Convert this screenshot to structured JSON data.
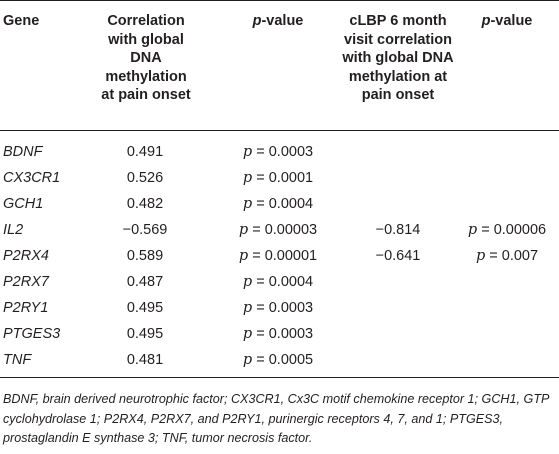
{
  "table": {
    "headers": {
      "gene": "Gene",
      "correlation_line1": "Correlation",
      "correlation_line2": "with global",
      "correlation_line3": "DNA",
      "correlation_line4": "methylation",
      "correlation_line5": "at pain onset",
      "pvalue_p": "p",
      "pvalue_rest": "-value",
      "clbp_line1": "cLBP 6 month",
      "clbp_line2": "visit correlation",
      "clbp_line3": "with global DNA",
      "clbp_line4": "methylation at",
      "clbp_line5": "pain onset",
      "pvalue2_p": "p",
      "pvalue2_rest": "-value"
    },
    "rows": [
      {
        "gene": "BDNF",
        "corr": "0.491",
        "p": "p = 0.0003",
        "clbp": "",
        "p2": ""
      },
      {
        "gene": "CX3CR1",
        "corr": "0.526",
        "p": "p = 0.0001",
        "clbp": "",
        "p2": ""
      },
      {
        "gene": "GCH1",
        "corr": "0.482",
        "p": "p = 0.0004",
        "clbp": "",
        "p2": ""
      },
      {
        "gene": "IL2",
        "corr": "−0.569",
        "p": "p = 0.00003",
        "clbp": "−0.814",
        "p2": "p = 0.00006"
      },
      {
        "gene": "P2RX4",
        "corr": "0.589",
        "p": "p = 0.00001",
        "clbp": "−0.641",
        "p2": "p = 0.007"
      },
      {
        "gene": "P2RX7",
        "corr": "0.487",
        "p": "p = 0.0004",
        "clbp": "",
        "p2": ""
      },
      {
        "gene": "P2RY1",
        "corr": "0.495",
        "p": "p = 0.0003",
        "clbp": "",
        "p2": ""
      },
      {
        "gene": "PTGES3",
        "corr": "0.495",
        "p": "p = 0.0003",
        "clbp": "",
        "p2": ""
      },
      {
        "gene": "TNF",
        "corr": "0.481",
        "p": "p = 0.0005",
        "clbp": "",
        "p2": ""
      }
    ],
    "footnote": "BDNF, brain derived neurotrophic factor; CX3CR1, Cx3C motif chemokine receptor 1; GCH1, GTP cyclohydrolase 1; P2RX4, P2RX7, and P2RY1, purinergic receptors 4, 7, and 1; PTGES3, prostaglandin E synthase 3; TNF, tumor necrosis factor."
  }
}
